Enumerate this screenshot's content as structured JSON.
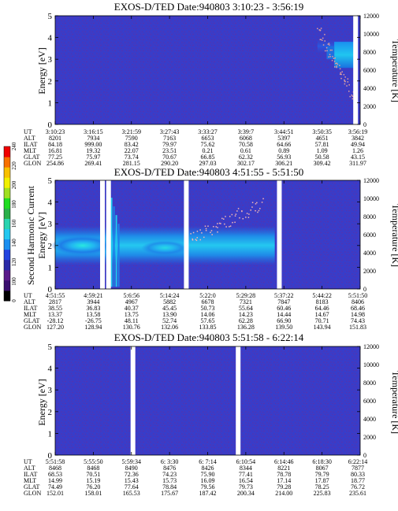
{
  "chart_data": [
    {
      "type": "heatmap",
      "title": "EXOS-D/TED  Date:940803  3:10:23 - 3:56:19",
      "ylabel": "Energy [eV]",
      "y2label": "Temperature [K]",
      "ylim": [
        0,
        5
      ],
      "y2lim": [
        0,
        12000
      ],
      "yticks": [
        "0",
        "1",
        "2",
        "3",
        "4",
        "5"
      ],
      "y2ticks": [
        "0",
        "2000",
        "4000",
        "6000",
        "8000",
        "10000",
        "12000"
      ],
      "gaps": [
        0.985
      ],
      "band": {
        "energy_center": 2.3,
        "energy_width": 0.6,
        "level": "low"
      },
      "feature": {
        "start": 0.86,
        "energy_top": 3.8,
        "energy_bottom": 2.6,
        "level": "high"
      },
      "temperature_points": {
        "start": 0.86,
        "end": 0.98,
        "from_k": 10500,
        "to_k": 3000
      },
      "table": {
        "labels": [
          "UT",
          "ALT",
          "ILAT",
          "MLT",
          "GLAT",
          "GLON"
        ],
        "columns": [
          [
            "3:10:23",
            "8201",
            "84.18",
            "16.81",
            "77.25",
            "254.86"
          ],
          [
            "3:16:15",
            "7934",
            "999.00",
            "19.32",
            "75.97",
            "269.41"
          ],
          [
            "3:21:59",
            "7590",
            "83.42",
            "22.07",
            "73.74",
            "281.15"
          ],
          [
            "3:27:43",
            "7163",
            "79.97",
            "23.51",
            "70.67",
            "290.20"
          ],
          [
            "3:33:27",
            "6653",
            "75.62",
            "0.21",
            "66.85",
            "297.03"
          ],
          [
            "3:39:7",
            "6068",
            "70.58",
            "0.61",
            "62.32",
            "302.17"
          ],
          [
            "3:44:51",
            "5397",
            "64.66",
            "0.89",
            "56.93",
            "306.21"
          ],
          [
            "3:50:35",
            "4651",
            "57.81",
            "1.09",
            "50.58",
            "309.42"
          ],
          [
            "3:56:19",
            "3842",
            "49.94",
            "1.26",
            "43.15",
            "311.97"
          ]
        ]
      }
    },
    {
      "type": "heatmap",
      "title": "EXOS-D/TED  Date:940803  4:51:55 - 5:51:50",
      "ylabel": "Energy [eV]",
      "ylabel2": "Second Harmonic Current",
      "y2label": "Temperature [K]",
      "ylim": [
        0,
        5
      ],
      "y2lim": [
        0,
        12000
      ],
      "yticks": [
        "0",
        "1",
        "2",
        "3",
        "4",
        "5"
      ],
      "y2ticks": [
        "0",
        "2000",
        "4000",
        "6000",
        "8000",
        "10000",
        "12000"
      ],
      "gaps": [
        0.155,
        0.175,
        0.43,
        0.735
      ],
      "band": {
        "energy_center": 2.0,
        "energy_width": 0.9,
        "level": "high",
        "fade_end": 0.72
      },
      "spike": {
        "position": 0.185,
        "width": 0.03
      },
      "temperature_points": {
        "start": 0.44,
        "end": 0.68,
        "from_k": 5500,
        "to_k": 9500
      },
      "table": {
        "labels": [
          "UT",
          "ALT",
          "ILAT",
          "MLT",
          "GLAT",
          "GLON"
        ],
        "columns": [
          [
            "4:51:55",
            "2817",
            "38.55",
            "13.37",
            "-28.12",
            "127.20"
          ],
          [
            "4:59:21",
            "3944",
            "36.83",
            "13.58",
            "-26.75",
            "128.94"
          ],
          [
            "5:6:56",
            "4967",
            "40.37",
            "13.75",
            "48.11",
            "130.76"
          ],
          [
            "5:14:24",
            "5882",
            "45.45",
            "13.90",
            "52.74",
            "132.06"
          ],
          [
            "5:22:0",
            "6678",
            "50.73",
            "14.06",
            "57.65",
            "133.85"
          ],
          [
            "5:29:28",
            "7321",
            "55.64",
            "14.23",
            "62.28",
            "136.28"
          ],
          [
            "5:37:22",
            "7847",
            "60.46",
            "14.44",
            "66.90",
            "139.50"
          ],
          [
            "5:44:22",
            "8183",
            "64.46",
            "14.67",
            "70.71",
            "143.94"
          ],
          [
            "5:51:50",
            "8406",
            "68.46",
            "14.98",
            "74.43",
            "151.83"
          ]
        ]
      }
    },
    {
      "type": "heatmap",
      "title": "EXOS-D/TED  Date:940803  5:51:58 - 6:22:14",
      "ylabel": "Energy [eV]",
      "y2label": "Temperature [K]",
      "ylim": [
        0,
        5
      ],
      "y2lim": [
        0,
        12000
      ],
      "yticks": [
        "0",
        "1",
        "2",
        "3",
        "4",
        "5"
      ],
      "y2ticks": [
        "0",
        "2000",
        "4000",
        "6000",
        "8000",
        "10000",
        "12000"
      ],
      "gaps": [
        0.255,
        0.6
      ],
      "table": {
        "labels": [
          "UT",
          "ALT",
          "ILAT",
          "MLT",
          "GLAT",
          "GLON"
        ],
        "columns": [
          [
            "5:51:58",
            "8468",
            "68.53",
            "14.99",
            "74.49",
            "152.01"
          ],
          [
            "5:55:50",
            "8468",
            "70.51",
            "15.19",
            "76.20",
            "158.01"
          ],
          [
            "5:59:34",
            "8490",
            "72.36",
            "15.43",
            "77.64",
            "165.53"
          ],
          [
            "6: 3:30",
            "8476",
            "74.23",
            "15.73",
            "78.84",
            "175.67"
          ],
          [
            "6: 7:14",
            "8426",
            "75.90",
            "16.09",
            "79.56",
            "187.42"
          ],
          [
            "6:10:54",
            "8344",
            "77.41",
            "16.54",
            "79.73",
            "200.34"
          ],
          [
            "6:14:46",
            "8221",
            "78.78",
            "17.14",
            "79.28",
            "214.00"
          ],
          [
            "6:18:30",
            "8067",
            "79.79",
            "17.87",
            "78.25",
            "225.83"
          ],
          [
            "6:22:14",
            "7877",
            "80.33",
            "18.77",
            "76.72",
            "235.61"
          ]
        ]
      }
    }
  ],
  "colorbar": {
    "ticks": [
      "0",
      "100",
      "120",
      "140",
      "160",
      "180",
      "200",
      "220",
      "240"
    ],
    "colors": [
      "#000000",
      "#3a0f6e",
      "#5a1a8a",
      "#2a2aa8",
      "#2244e0",
      "#1a8ef0",
      "#24c8f0",
      "#2ad4b0",
      "#2ab04a",
      "#20dd20",
      "#a0e020",
      "#f0f000",
      "#f8c000",
      "#f87000",
      "#f00000"
    ]
  },
  "colors": {
    "background": "#3a3cc7",
    "grid_points": "#9a4848"
  }
}
